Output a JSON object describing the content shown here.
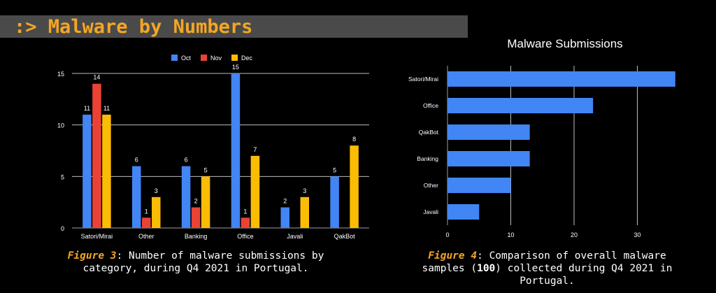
{
  "header": {
    "title": ":> Malware by Numbers"
  },
  "colors": {
    "oct": "#4285f4",
    "nov": "#ea4335",
    "dec": "#fbbc04",
    "accent": "#f5a623",
    "grid": "#bdbdbd"
  },
  "figure3": {
    "label": "Figure 3",
    "text": ": Number of malware submissions by category, during Q4 2021 in Portugal."
  },
  "figure4": {
    "label": "Figure 4",
    "text_before": ": Comparison of overall malware samples (",
    "bold_value": "100",
    "text_after": ") collected during Q4 2021 in Portugal."
  },
  "chart_data": [
    {
      "type": "bar",
      "title": "",
      "xlabel": "",
      "ylabel": "",
      "categories": [
        "Satori/Mirai",
        "Other",
        "Banking",
        "Office",
        "Javali",
        "QakBot"
      ],
      "series": [
        {
          "name": "Oct",
          "values": [
            11,
            6,
            6,
            15,
            2,
            5
          ]
        },
        {
          "name": "Nov",
          "values": [
            14,
            1,
            2,
            1,
            0,
            0
          ]
        },
        {
          "name": "Dec",
          "values": [
            11,
            3,
            5,
            7,
            3,
            8
          ]
        }
      ],
      "data_labels": [
        [
          11,
          6,
          6,
          15,
          2,
          5
        ],
        [
          14,
          1,
          2,
          1,
          null,
          null
        ],
        [
          11,
          3,
          5,
          7,
          3,
          8
        ]
      ],
      "yticks": [
        0,
        5,
        10,
        15
      ],
      "ylim": [
        0,
        15
      ],
      "grid": true,
      "legend": "top"
    },
    {
      "type": "bar",
      "orientation": "horizontal",
      "title": "Malware Submissions",
      "categories": [
        "Satori/Mirai",
        "Office",
        "QakBot",
        "Banking",
        "Other",
        "Javali"
      ],
      "values": [
        36,
        23,
        13,
        13,
        10,
        5
      ],
      "xticks": [
        0,
        10,
        20,
        30
      ],
      "xlim": [
        0,
        36
      ],
      "grid": true
    }
  ]
}
